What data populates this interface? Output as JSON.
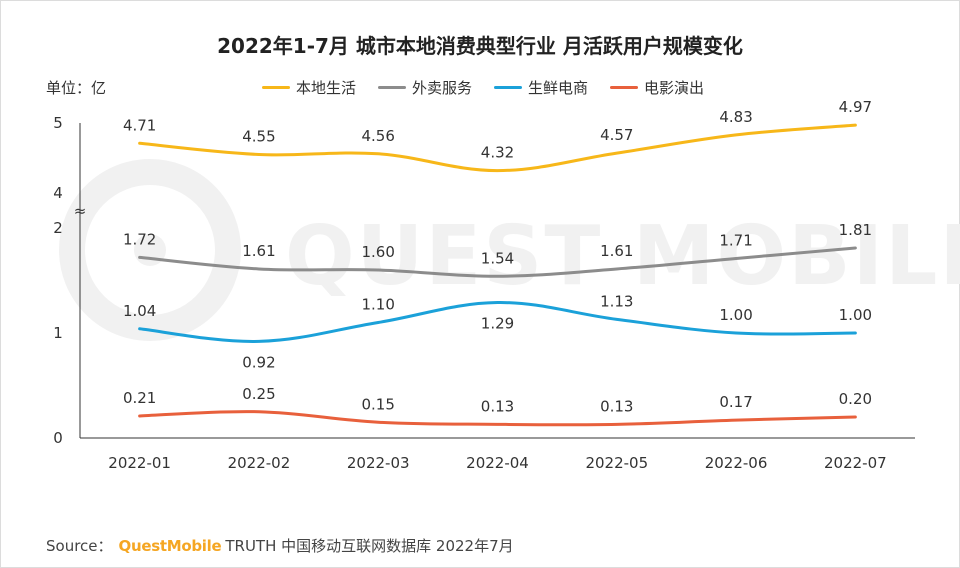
{
  "chart_data": {
    "type": "line",
    "title": "2022年1-7月 城市本地消费典型行业 月活跃用户规模变化",
    "unit_label": "单位：亿",
    "categories": [
      "2022-01",
      "2022-02",
      "2022-03",
      "2022-04",
      "2022-05",
      "2022-06",
      "2022-07"
    ],
    "y_ticks": [
      "0",
      "1",
      "2",
      "4",
      "5"
    ],
    "axis_break": "≈",
    "ylim_lower": [
      0,
      2
    ],
    "ylim_upper": [
      4,
      5
    ],
    "series": [
      {
        "name": "本地生活",
        "color": "#f7b719",
        "values": [
          4.71,
          4.55,
          4.56,
          4.32,
          4.57,
          4.83,
          4.97
        ],
        "labels": [
          "4.71",
          "4.55",
          "4.56",
          "4.32",
          "4.57",
          "4.83",
          "4.97"
        ]
      },
      {
        "name": "外卖服务",
        "color": "#8c8c8c",
        "values": [
          1.72,
          1.61,
          1.6,
          1.54,
          1.61,
          1.71,
          1.81
        ],
        "labels": [
          "1.72",
          "1.61",
          "1.60",
          "1.54",
          "1.61",
          "1.71",
          "1.81"
        ]
      },
      {
        "name": "生鲜电商",
        "color": "#1ba1d9",
        "values": [
          1.04,
          0.92,
          1.1,
          1.29,
          1.13,
          1.0,
          1.0
        ],
        "labels": [
          "1.04",
          "0.92",
          "1.10",
          "1.29",
          "1.13",
          "1.00",
          "1.00"
        ]
      },
      {
        "name": "电影演出",
        "color": "#e8603c",
        "values": [
          0.21,
          0.25,
          0.15,
          0.13,
          0.13,
          0.17,
          0.2
        ],
        "labels": [
          "0.21",
          "0.25",
          "0.15",
          "0.13",
          "0.13",
          "0.17",
          "0.20"
        ]
      }
    ],
    "label_placement": [
      [
        "above",
        "above",
        "above",
        "above",
        "above",
        "above",
        "above"
      ],
      [
        "above",
        "above",
        "above",
        "above",
        "above",
        "above",
        "above"
      ],
      [
        "above",
        "below",
        "above",
        "below",
        "above",
        "above",
        "above"
      ],
      [
        "above",
        "above",
        "above",
        "above",
        "above",
        "above",
        "above"
      ]
    ]
  },
  "watermark": "QUEST MOBILE",
  "source": {
    "prefix": "Source：",
    "brand": "QuestMobile",
    "rest": "TRUTH 中国移动互联网数据库 2022年7月"
  }
}
